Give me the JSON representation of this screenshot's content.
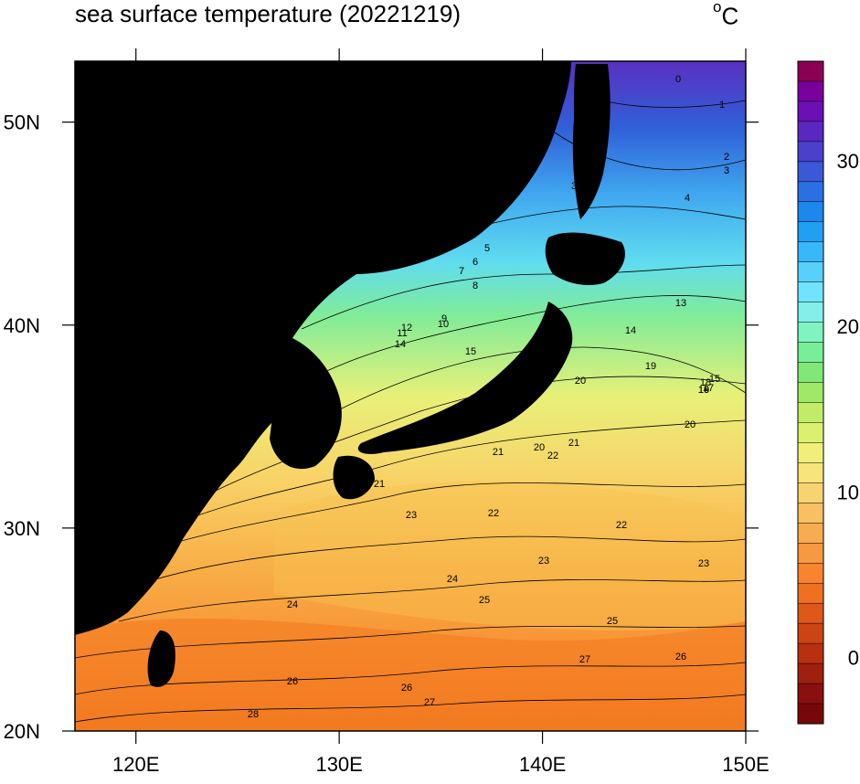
{
  "title": "sea surface temperature (20221219)",
  "units": {
    "symbol": "o",
    "letter": "C"
  },
  "map": {
    "lon_range": [
      117,
      150
    ],
    "lat_range": [
      20,
      53
    ],
    "x_ticks": [
      "120E",
      "130E",
      "140E",
      "150E"
    ],
    "x_tick_values": [
      120,
      130,
      140,
      150
    ],
    "y_ticks": [
      "20N",
      "30N",
      "40N",
      "50N"
    ],
    "y_tick_values": [
      20,
      30,
      40,
      50
    ],
    "land_color": "#000000"
  },
  "colorbar": {
    "labels": [
      "30",
      "20",
      "10",
      "0"
    ],
    "label_values": [
      30,
      20,
      10,
      0
    ],
    "range": [
      -4,
      36
    ],
    "colors": [
      "#8c0054",
      "#7a009c",
      "#6a10b4",
      "#5a28c0",
      "#4a40cc",
      "#3a58d8",
      "#2a70e4",
      "#1c88ee",
      "#20a0f4",
      "#38b8f8",
      "#58d0fc",
      "#70e4fc",
      "#80f0e8",
      "#80f4c0",
      "#78ee98",
      "#80e878",
      "#a0e868",
      "#c0ec68",
      "#dcf070",
      "#f0f078",
      "#f8e478",
      "#f8d470",
      "#f8c060",
      "#f8ac50",
      "#f89840",
      "#f88430",
      "#f07020",
      "#e05818",
      "#cc4410",
      "#b83010",
      "#a02010",
      "#8a1010",
      "#780808"
    ]
  },
  "contour_labels": [
    "0",
    "1",
    "2",
    "3",
    "3",
    "4",
    "5",
    "6",
    "7",
    "8",
    "9",
    "10",
    "11",
    "12",
    "13",
    "14",
    "14",
    "15",
    "15",
    "16",
    "17",
    "18",
    "19",
    "19",
    "20",
    "20",
    "20",
    "21",
    "21",
    "21",
    "22",
    "22",
    "22",
    "23",
    "23",
    "23",
    "24",
    "24",
    "25",
    "25",
    "26",
    "26",
    "26",
    "27",
    "27",
    "28"
  ]
}
